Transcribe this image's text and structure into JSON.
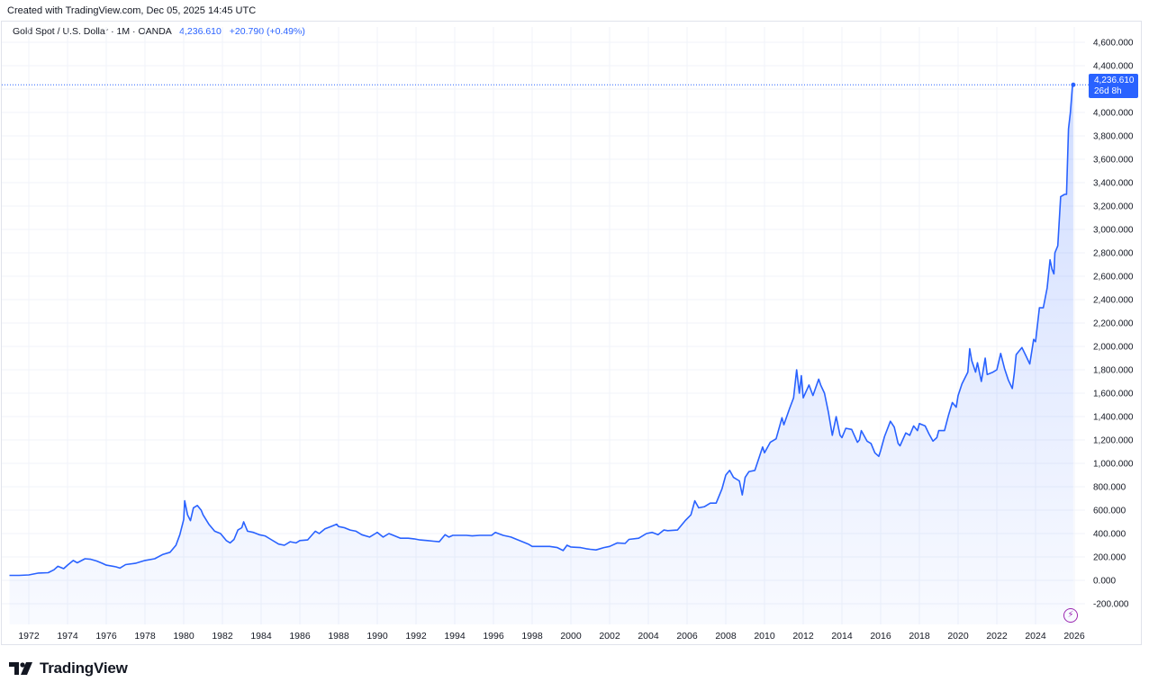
{
  "header": {
    "credit": "Created with TradingView.com, Dec 05, 2025 14:45 UTC"
  },
  "legend": {
    "symbol": "Gold Spot / U.S. Dollar · 1M · OANDA",
    "last_value": "4,236.610",
    "change": "+20.790 (+0.49%)"
  },
  "price_badge": {
    "price": "4,236.610",
    "countdown": "26d 8h"
  },
  "footer": {
    "brand": "TradingView"
  },
  "icons": {
    "logo": "tradingview-logo-icon",
    "alert": "lightning-icon"
  },
  "colors": {
    "line": "#2962ff",
    "fill": "#2962ff",
    "grid": "#f0f3fa",
    "badge": "#2962ff",
    "alert": "#9c27b0"
  },
  "chart_data": {
    "type": "area",
    "title": "Gold Spot / U.S. Dollar · 1M · OANDA",
    "xlabel": "",
    "ylabel": "",
    "grid": true,
    "xlim": [
      1971.0,
      2026.9
    ],
    "ylim": [
      -200,
      4600
    ],
    "y_ticks": [
      "4,600.000",
      "4,400.000",
      "4,200.000",
      "4,000.000",
      "3,800.000",
      "3,600.000",
      "3,400.000",
      "3,200.000",
      "3,000.000",
      "2,800.000",
      "2,600.000",
      "2,400.000",
      "2,200.000",
      "2,000.000",
      "1,800.000",
      "1,600.000",
      "1,400.000",
      "1,200.000",
      "1,000.000",
      "800.000",
      "600.000",
      "400.000",
      "200.000",
      "0.000",
      "-200.000"
    ],
    "x_ticks": [
      "1972",
      "1974",
      "1976",
      "1978",
      "1980",
      "1982",
      "1984",
      "1986",
      "1988",
      "1990",
      "1992",
      "1994",
      "1996",
      "1998",
      "2000",
      "2002",
      "2004",
      "2006",
      "2008",
      "2010",
      "2012",
      "2014",
      "2016",
      "2018",
      "2020",
      "2022",
      "2024",
      "2026"
    ],
    "series": [
      {
        "points": [
          [
            1971.0,
            42
          ],
          [
            1971.5,
            42
          ],
          [
            1972.0,
            46
          ],
          [
            1972.5,
            62
          ],
          [
            1973.0,
            65
          ],
          [
            1973.3,
            90
          ],
          [
            1973.5,
            120
          ],
          [
            1973.8,
            100
          ],
          [
            1974.0,
            130
          ],
          [
            1974.3,
            170
          ],
          [
            1974.5,
            150
          ],
          [
            1974.9,
            185
          ],
          [
            1975.2,
            180
          ],
          [
            1975.5,
            165
          ],
          [
            1975.8,
            145
          ],
          [
            1976.0,
            130
          ],
          [
            1976.5,
            115
          ],
          [
            1976.7,
            105
          ],
          [
            1977.0,
            135
          ],
          [
            1977.5,
            145
          ],
          [
            1978.0,
            170
          ],
          [
            1978.5,
            185
          ],
          [
            1978.9,
            220
          ],
          [
            1979.3,
            240
          ],
          [
            1979.6,
            300
          ],
          [
            1979.8,
            390
          ],
          [
            1980.0,
            520
          ],
          [
            1980.05,
            680
          ],
          [
            1980.2,
            560
          ],
          [
            1980.35,
            510
          ],
          [
            1980.5,
            620
          ],
          [
            1980.7,
            640
          ],
          [
            1980.9,
            600
          ],
          [
            1981.0,
            560
          ],
          [
            1981.3,
            480
          ],
          [
            1981.6,
            420
          ],
          [
            1981.9,
            400
          ],
          [
            1982.2,
            340
          ],
          [
            1982.4,
            320
          ],
          [
            1982.6,
            350
          ],
          [
            1982.8,
            430
          ],
          [
            1983.0,
            450
          ],
          [
            1983.1,
            500
          ],
          [
            1983.3,
            420
          ],
          [
            1983.6,
            410
          ],
          [
            1983.9,
            390
          ],
          [
            1984.2,
            380
          ],
          [
            1984.5,
            350
          ],
          [
            1984.9,
            310
          ],
          [
            1985.2,
            300
          ],
          [
            1985.5,
            330
          ],
          [
            1985.8,
            320
          ],
          [
            1986.0,
            340
          ],
          [
            1986.4,
            345
          ],
          [
            1986.8,
            420
          ],
          [
            1987.0,
            400
          ],
          [
            1987.3,
            440
          ],
          [
            1987.6,
            460
          ],
          [
            1987.9,
            480
          ],
          [
            1988.0,
            460
          ],
          [
            1988.3,
            450
          ],
          [
            1988.6,
            430
          ],
          [
            1988.9,
            420
          ],
          [
            1989.2,
            390
          ],
          [
            1989.6,
            370
          ],
          [
            1989.9,
            400
          ],
          [
            1990.0,
            410
          ],
          [
            1990.3,
            370
          ],
          [
            1990.6,
            400
          ],
          [
            1990.9,
            380
          ],
          [
            1991.2,
            360
          ],
          [
            1991.6,
            360
          ],
          [
            1991.9,
            355
          ],
          [
            1992.2,
            345
          ],
          [
            1992.6,
            340
          ],
          [
            1992.9,
            335
          ],
          [
            1993.2,
            330
          ],
          [
            1993.5,
            390
          ],
          [
            1993.7,
            370
          ],
          [
            1993.9,
            385
          ],
          [
            1994.2,
            385
          ],
          [
            1994.6,
            385
          ],
          [
            1994.9,
            380
          ],
          [
            1995.3,
            385
          ],
          [
            1995.6,
            385
          ],
          [
            1995.9,
            385
          ],
          [
            1996.1,
            410
          ],
          [
            1996.5,
            385
          ],
          [
            1996.9,
            370
          ],
          [
            1997.2,
            350
          ],
          [
            1997.5,
            330
          ],
          [
            1997.8,
            310
          ],
          [
            1998.0,
            290
          ],
          [
            1998.5,
            290
          ],
          [
            1998.9,
            290
          ],
          [
            1999.3,
            280
          ],
          [
            1999.6,
            255
          ],
          [
            1999.8,
            300
          ],
          [
            2000.0,
            285
          ],
          [
            2000.5,
            280
          ],
          [
            2000.8,
            270
          ],
          [
            2001.0,
            265
          ],
          [
            2001.3,
            260
          ],
          [
            2001.7,
            280
          ],
          [
            2002.0,
            290
          ],
          [
            2002.4,
            320
          ],
          [
            2002.8,
            315
          ],
          [
            2003.0,
            350
          ],
          [
            2003.5,
            360
          ],
          [
            2003.9,
            400
          ],
          [
            2004.2,
            410
          ],
          [
            2004.5,
            390
          ],
          [
            2004.8,
            430
          ],
          [
            2005.0,
            425
          ],
          [
            2005.5,
            430
          ],
          [
            2005.9,
            510
          ],
          [
            2006.2,
            560
          ],
          [
            2006.4,
            680
          ],
          [
            2006.6,
            620
          ],
          [
            2006.9,
            630
          ],
          [
            2007.2,
            660
          ],
          [
            2007.5,
            660
          ],
          [
            2007.8,
            780
          ],
          [
            2008.0,
            900
          ],
          [
            2008.2,
            940
          ],
          [
            2008.4,
            880
          ],
          [
            2008.7,
            850
          ],
          [
            2008.85,
            730
          ],
          [
            2009.0,
            880
          ],
          [
            2009.2,
            930
          ],
          [
            2009.5,
            940
          ],
          [
            2009.9,
            1140
          ],
          [
            2010.0,
            1090
          ],
          [
            2010.3,
            1180
          ],
          [
            2010.6,
            1210
          ],
          [
            2010.9,
            1390
          ],
          [
            2011.0,
            1330
          ],
          [
            2011.3,
            1470
          ],
          [
            2011.5,
            1560
          ],
          [
            2011.66,
            1800
          ],
          [
            2011.8,
            1600
          ],
          [
            2011.9,
            1750
          ],
          [
            2012.0,
            1560
          ],
          [
            2012.3,
            1670
          ],
          [
            2012.5,
            1580
          ],
          [
            2012.8,
            1720
          ],
          [
            2012.9,
            1670
          ],
          [
            2013.1,
            1600
          ],
          [
            2013.3,
            1440
          ],
          [
            2013.5,
            1240
          ],
          [
            2013.7,
            1400
          ],
          [
            2013.9,
            1240
          ],
          [
            2014.0,
            1220
          ],
          [
            2014.2,
            1300
          ],
          [
            2014.5,
            1290
          ],
          [
            2014.8,
            1180
          ],
          [
            2014.9,
            1200
          ],
          [
            2015.0,
            1280
          ],
          [
            2015.3,
            1190
          ],
          [
            2015.5,
            1170
          ],
          [
            2015.7,
            1090
          ],
          [
            2015.9,
            1060
          ],
          [
            2016.0,
            1110
          ],
          [
            2016.2,
            1230
          ],
          [
            2016.5,
            1360
          ],
          [
            2016.7,
            1310
          ],
          [
            2016.9,
            1170
          ],
          [
            2017.0,
            1150
          ],
          [
            2017.3,
            1260
          ],
          [
            2017.5,
            1240
          ],
          [
            2017.7,
            1320
          ],
          [
            2017.9,
            1280
          ],
          [
            2018.0,
            1340
          ],
          [
            2018.3,
            1320
          ],
          [
            2018.5,
            1250
          ],
          [
            2018.7,
            1190
          ],
          [
            2018.9,
            1220
          ],
          [
            2019.0,
            1280
          ],
          [
            2019.3,
            1280
          ],
          [
            2019.5,
            1410
          ],
          [
            2019.7,
            1520
          ],
          [
            2019.9,
            1480
          ],
          [
            2020.0,
            1580
          ],
          [
            2020.2,
            1680
          ],
          [
            2020.5,
            1780
          ],
          [
            2020.6,
            1980
          ],
          [
            2020.7,
            1880
          ],
          [
            2020.9,
            1780
          ],
          [
            2021.0,
            1860
          ],
          [
            2021.2,
            1700
          ],
          [
            2021.4,
            1900
          ],
          [
            2021.5,
            1760
          ],
          [
            2021.8,
            1780
          ],
          [
            2022.0,
            1800
          ],
          [
            2022.2,
            1940
          ],
          [
            2022.4,
            1810
          ],
          [
            2022.6,
            1710
          ],
          [
            2022.8,
            1640
          ],
          [
            2022.9,
            1770
          ],
          [
            2023.0,
            1930
          ],
          [
            2023.3,
            1990
          ],
          [
            2023.5,
            1920
          ],
          [
            2023.7,
            1850
          ],
          [
            2023.9,
            2060
          ],
          [
            2024.0,
            2040
          ],
          [
            2024.2,
            2330
          ],
          [
            2024.4,
            2330
          ],
          [
            2024.6,
            2500
          ],
          [
            2024.75,
            2740
          ],
          [
            2024.85,
            2660
          ],
          [
            2024.95,
            2620
          ],
          [
            2025.0,
            2800
          ],
          [
            2025.15,
            2860
          ],
          [
            2025.3,
            3280
          ],
          [
            2025.5,
            3300
          ],
          [
            2025.6,
            3300
          ],
          [
            2025.7,
            3860
          ],
          [
            2025.8,
            4000
          ],
          [
            2025.9,
            4220
          ],
          [
            2025.95,
            4236.61
          ]
        ]
      }
    ]
  }
}
